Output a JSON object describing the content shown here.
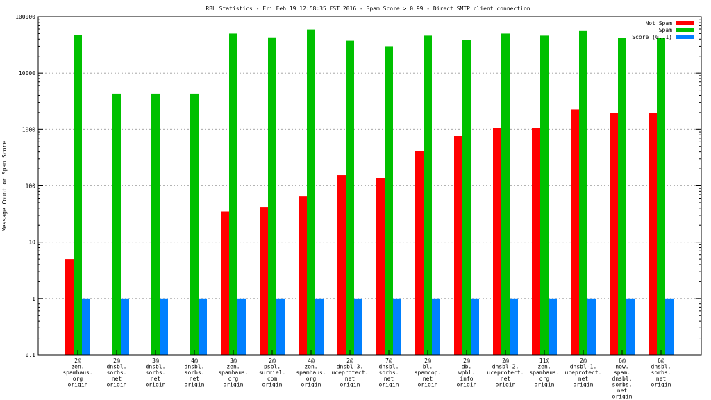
{
  "chart_data": {
    "type": "bar",
    "title": "RBL Statistics - Fri Feb 19 12:58:35 EST 2016 - Spam Score > 0.99 - Direct SMTP client connection",
    "ylabel": "Message Count or Spam Score",
    "xlabel": "",
    "yscale": "log",
    "ylim": [
      0.1,
      100000
    ],
    "yticks": [
      "0.1",
      "1",
      "10",
      "100",
      "1000",
      "10000",
      "100000"
    ],
    "grid": true,
    "legend_position": "top-right",
    "categories": [
      [
        "2@",
        "zen.",
        "spamhaus.",
        "org",
        "origin"
      ],
      [
        "2@",
        "dnsbl.",
        "sorbs.",
        "net",
        "origin"
      ],
      [
        "3@",
        "dnsbl.",
        "sorbs.",
        "net",
        "origin"
      ],
      [
        "4@",
        "dnsbl.",
        "sorbs.",
        "net",
        "origin"
      ],
      [
        "3@",
        "zen.",
        "spamhaus.",
        "org",
        "origin"
      ],
      [
        "2@",
        "psbl.",
        "surriel.",
        "com",
        "origin"
      ],
      [
        "4@",
        "zen.",
        "spamhaus.",
        "org",
        "origin"
      ],
      [
        "2@",
        "dnsbl-3.",
        "uceprotect.",
        "net",
        "origin"
      ],
      [
        "7@",
        "dnsbl.",
        "sorbs.",
        "net",
        "origin"
      ],
      [
        "2@",
        "bl.",
        "spamcop.",
        "net",
        "origin"
      ],
      [
        "2@",
        "db.",
        "wpbl.",
        "info",
        "origin"
      ],
      [
        "2@",
        "dnsbl-2.",
        "uceprotect.",
        "net",
        "origin"
      ],
      [
        "11@",
        "zen.",
        "spamhaus.",
        "org",
        "origin"
      ],
      [
        "2@",
        "dnsbl-1.",
        "uceprotect.",
        "net",
        "origin"
      ],
      [
        "6@",
        "new.",
        "spam.",
        "dnsbl.",
        "sorbs.",
        "net",
        "origin"
      ],
      [
        "6@",
        "dnsbl.",
        "sorbs.",
        "net",
        "origin"
      ]
    ],
    "series": [
      {
        "name": "Not Spam",
        "color": "#ff0000",
        "values": [
          5,
          null,
          null,
          null,
          35,
          42,
          66,
          155,
          137,
          415,
          760,
          1050,
          1060,
          2270,
          1960,
          1960
        ]
      },
      {
        "name": "Spam",
        "color": "#00c000",
        "values": [
          47000,
          4300,
          4300,
          4300,
          50000,
          43000,
          59000,
          37500,
          30000,
          46000,
          38500,
          50000,
          46000,
          57000,
          42000,
          42000
        ]
      },
      {
        "name": "Score (0..1)",
        "color": "#0080ff",
        "values": [
          1,
          1,
          1,
          1,
          1,
          1,
          1,
          1,
          1,
          1,
          1,
          1,
          1,
          1,
          1,
          1
        ]
      }
    ]
  }
}
